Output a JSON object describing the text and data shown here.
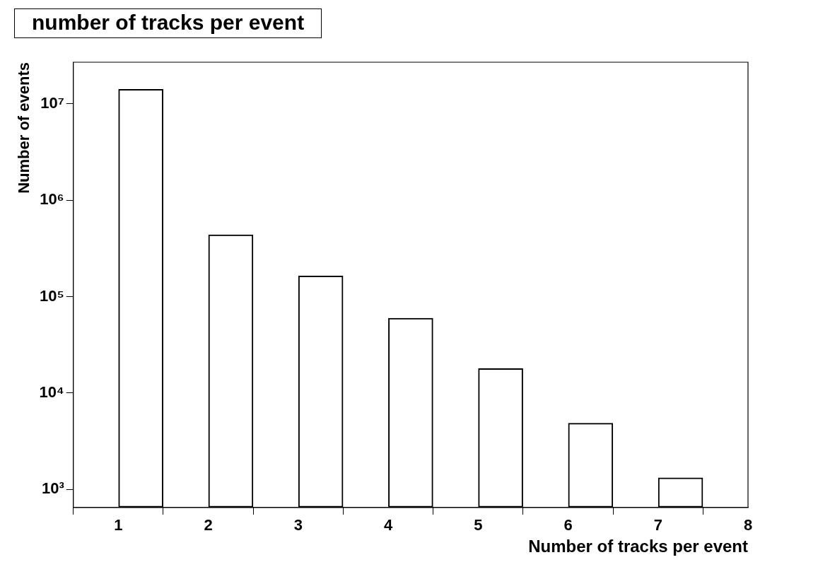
{
  "chart_data": {
    "type": "bar",
    "title": "number of tracks per event",
    "xlabel": "Number of tracks per event",
    "ylabel": "Number of events",
    "x": [
      1.25,
      2.25,
      3.25,
      4.25,
      5.25,
      6.25,
      7.25
    ],
    "values": [
      14200000,
      440000,
      165000,
      60000,
      18000,
      4900,
      1330
    ],
    "color": "#000000",
    "xlim": [
      0.5,
      8
    ],
    "xticks": [
      1,
      2,
      3,
      4,
      5,
      6,
      7,
      8
    ],
    "ylim": [
      650,
      27000000
    ],
    "yticks": [
      {
        "value": 1000,
        "label": "10³"
      },
      {
        "value": 10000,
        "label": "10⁴"
      },
      {
        "value": 100000,
        "label": "10⁵"
      },
      {
        "value": 1000000,
        "label": "10⁶"
      },
      {
        "value": 10000000,
        "label": "10⁷"
      }
    ],
    "log": true,
    "grid": false,
    "legend": false
  }
}
